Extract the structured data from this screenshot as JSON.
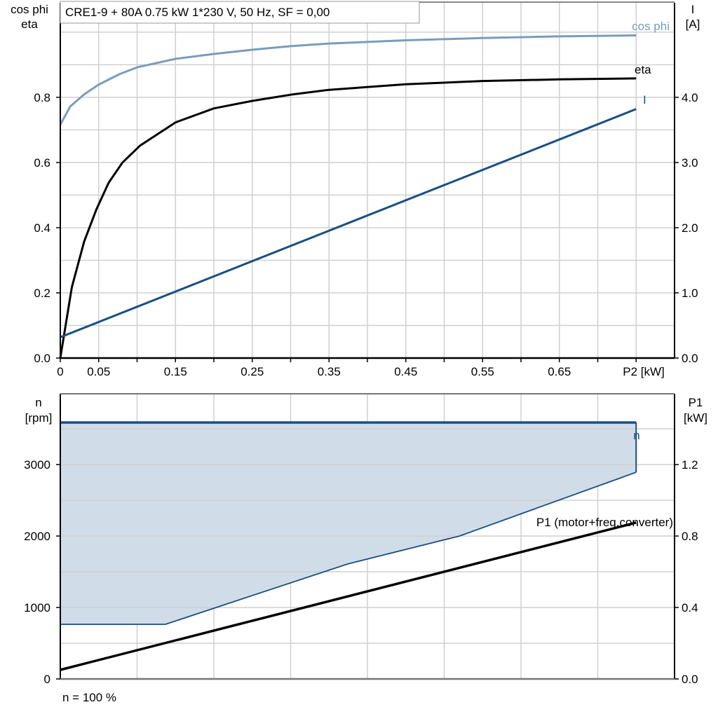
{
  "chart_data": [
    {
      "type": "line",
      "title": "CRE1-9 + 80A   0.75 kW   1*230 V, 50 Hz, SF = 0,00",
      "xlabel": "P2 [kW]",
      "ylabel_left": [
        "cos phi",
        "eta"
      ],
      "ylabel_right": [
        "I",
        "[A]"
      ],
      "xlim": [
        0,
        0.8
      ],
      "ylim_left": [
        0,
        1.09
      ],
      "ylim_right": [
        0,
        5.45
      ],
      "x_ticks": [
        0,
        0.05,
        0.1,
        0.15,
        0.2,
        0.25,
        0.3,
        0.35,
        0.4,
        0.45,
        0.5,
        0.55,
        0.6,
        0.65,
        0.7,
        0.75
      ],
      "x_tick_labels": [
        "0",
        "0.05",
        "0.15",
        "0.25",
        "0.35",
        "0.45",
        "0.55",
        "0.65"
      ],
      "x_tick_label_values": [
        0,
        0.05,
        0.15,
        0.25,
        0.35,
        0.45,
        0.55,
        0.65
      ],
      "y_left_ticks": [
        "0.0",
        "0.2",
        "0.4",
        "0.6",
        "0.8"
      ],
      "y_right_ticks": [
        "0.0",
        "1.0",
        "2.0",
        "3.0",
        "4.0"
      ],
      "grid": true,
      "series": [
        {
          "name": "cos phi",
          "axis": "left",
          "color": "#7a9cbd",
          "x": [
            0,
            0.013,
            0.031,
            0.05,
            0.077,
            0.1,
            0.15,
            0.2,
            0.25,
            0.3,
            0.35,
            0.45,
            0.55,
            0.65,
            0.75
          ],
          "y": [
            0.716,
            0.772,
            0.809,
            0.839,
            0.871,
            0.892,
            0.918,
            0.933,
            0.946,
            0.957,
            0.965,
            0.975,
            0.982,
            0.987,
            0.99
          ]
        },
        {
          "name": "eta",
          "axis": "left",
          "color": "#000000",
          "x": [
            0,
            0.015,
            0.031,
            0.047,
            0.063,
            0.081,
            0.104,
            0.15,
            0.2,
            0.25,
            0.3,
            0.35,
            0.45,
            0.55,
            0.65,
            0.75
          ],
          "y": [
            0,
            0.217,
            0.357,
            0.456,
            0.538,
            0.6,
            0.652,
            0.723,
            0.766,
            0.789,
            0.808,
            0.823,
            0.84,
            0.85,
            0.855,
            0.858
          ]
        },
        {
          "name": "I",
          "axis": "right",
          "color": "#1a4f82",
          "x": [
            0,
            0.75
          ],
          "y": [
            0.32,
            3.82
          ]
        }
      ]
    },
    {
      "type": "area",
      "xlim": [
        0,
        0.8
      ],
      "ylabel_left": [
        "n",
        "[rpm]"
      ],
      "ylabel_right": [
        "P1",
        "[kW]"
      ],
      "ylim_left": [
        0,
        3990
      ],
      "ylim_right": [
        0,
        1.596
      ],
      "y_left_ticks": [
        "0",
        "1000",
        "2000",
        "3000"
      ],
      "y_right_ticks": [
        "0.0",
        "0.4",
        "0.8",
        "1.2"
      ],
      "grid": true,
      "footnote": "n = 100 %",
      "series": [
        {
          "name": "n",
          "axis": "left",
          "color": "#1a4f82",
          "fill": "#d0dce7",
          "x": [
            0,
            0.75
          ],
          "y": [
            3588,
            3588
          ],
          "lower_x": [
            0,
            0.137,
            0.374,
            0.52,
            0.75
          ],
          "lower_y": [
            765,
            765,
            1608,
            2000,
            2892
          ]
        },
        {
          "name": "P1 (motor+freq.converter)",
          "axis": "right",
          "color": "#000000",
          "x": [
            0,
            0.75
          ],
          "y": [
            0.051,
            0.875
          ]
        }
      ]
    }
  ]
}
